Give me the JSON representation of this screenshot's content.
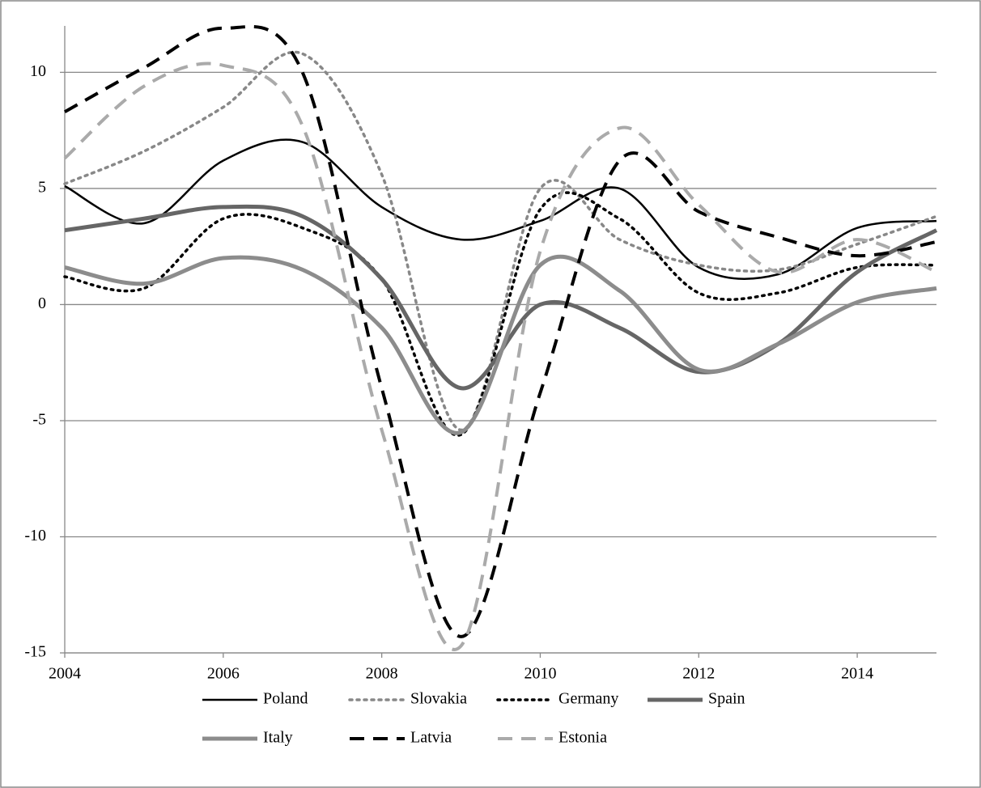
{
  "chart_data": {
    "type": "line",
    "x": [
      2004,
      2005,
      2006,
      2007,
      2008,
      2009,
      2010,
      2011,
      2012,
      2013,
      2014,
      2015
    ],
    "xlim": [
      2004,
      2015
    ],
    "xticks": [
      2004,
      2006,
      2008,
      2010,
      2012,
      2014
    ],
    "ylim": [
      -15,
      12
    ],
    "yticks": [
      -15,
      -10,
      -5,
      0,
      5,
      10
    ],
    "grid": true,
    "legend": "bottom",
    "series": [
      {
        "name": "Poland",
        "color": "#000000",
        "dash": "solid",
        "values": [
          5.1,
          3.5,
          6.2,
          7.0,
          4.2,
          2.8,
          3.6,
          5.0,
          1.6,
          1.3,
          3.3,
          3.6
        ]
      },
      {
        "name": "Slovakia",
        "color": "#888888",
        "dash": "dotted",
        "values": [
          5.2,
          6.6,
          8.5,
          10.8,
          5.6,
          -5.4,
          5.0,
          2.8,
          1.7,
          1.5,
          2.6,
          3.8
        ]
      },
      {
        "name": "Germany",
        "color": "#000000",
        "dash": "dotted",
        "values": [
          1.2,
          0.7,
          3.7,
          3.3,
          1.1,
          -5.6,
          4.1,
          3.7,
          0.5,
          0.5,
          1.6,
          1.7
        ]
      },
      {
        "name": "Spain",
        "color": "#666666",
        "dash": "solid",
        "values": [
          3.2,
          3.7,
          4.2,
          3.8,
          1.1,
          -3.6,
          0.0,
          -1.0,
          -2.9,
          -1.7,
          1.4,
          3.2
        ]
      },
      {
        "name": "Italy",
        "color": "#8c8c8c",
        "dash": "solid",
        "values": [
          1.6,
          0.9,
          2.0,
          1.5,
          -1.0,
          -5.5,
          1.7,
          0.6,
          -2.8,
          -1.7,
          0.1,
          0.7
        ]
      },
      {
        "name": "Latvia",
        "color": "#000000",
        "dash": "dashed",
        "values": [
          8.3,
          10.2,
          11.9,
          10.0,
          -3.6,
          -14.3,
          -3.8,
          6.2,
          4.0,
          2.9,
          2.1,
          2.7
        ]
      },
      {
        "name": "Estonia",
        "color": "#aaaaaa",
        "dash": "dashed",
        "values": [
          6.3,
          9.4,
          10.3,
          7.7,
          -5.4,
          -14.7,
          2.3,
          7.6,
          4.3,
          1.4,
          2.8,
          1.4
        ]
      }
    ]
  }
}
